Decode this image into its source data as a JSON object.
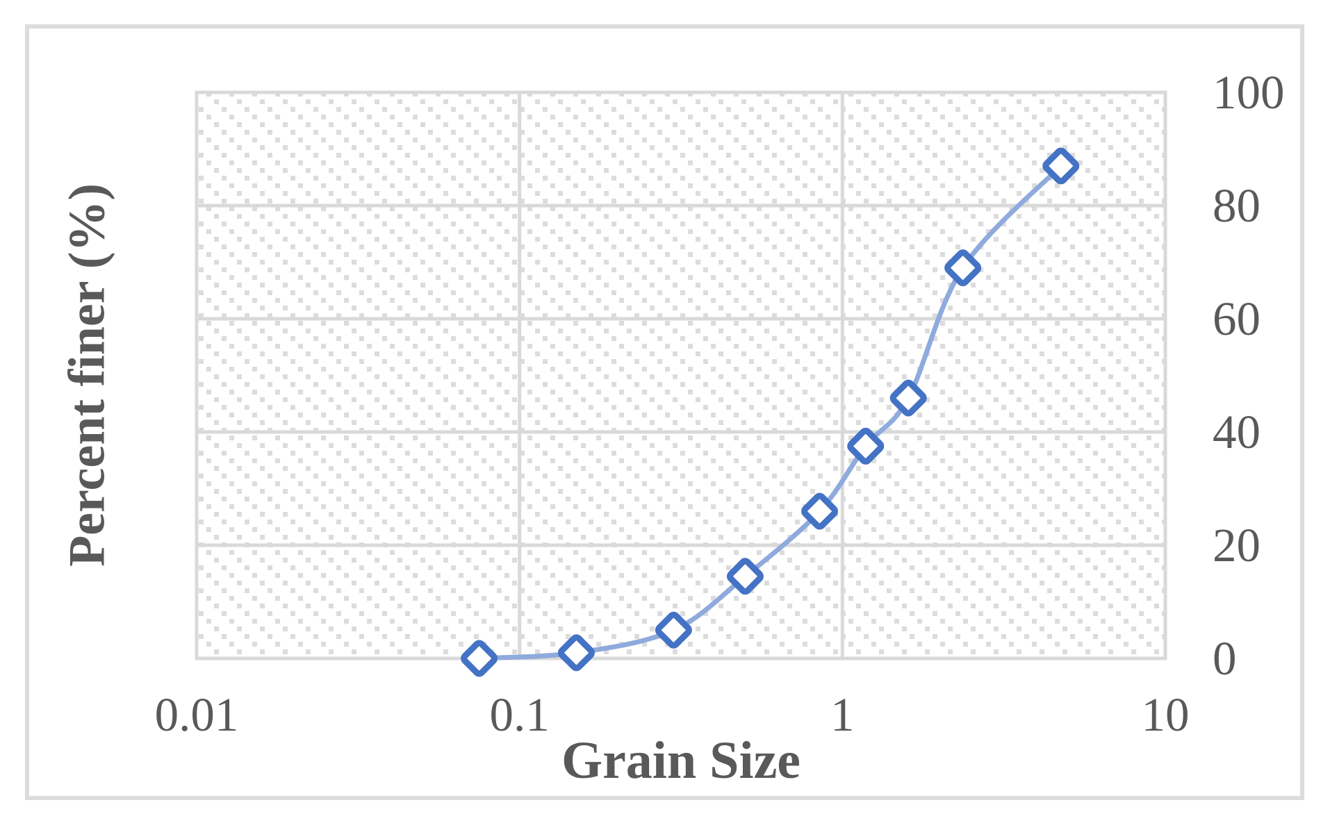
{
  "chart_data": {
    "type": "line",
    "title": "",
    "xlabel": "Grain Size",
    "ylabel": "Percent finer (%)",
    "x_scale": "log",
    "xlim": [
      0.01,
      10
    ],
    "x_ticks": [
      "0.01",
      "0.1",
      "1",
      "10"
    ],
    "ylim": [
      0,
      100
    ],
    "y_ticks": [
      0,
      20,
      40,
      60,
      80,
      100
    ],
    "y_axis_side": "right",
    "grid": true,
    "legend": false,
    "plot_area_fill": "light-downward-diagonal-dotted-hatch",
    "series": [
      {
        "name": "Percent finer",
        "marker": "diamond",
        "line_style": "smooth",
        "x": [
          0.075,
          0.15,
          0.3,
          0.5,
          0.85,
          1.18,
          1.6,
          2.36,
          4.75
        ],
        "y": [
          0,
          1,
          5,
          14.5,
          26,
          37.5,
          46,
          69,
          87
        ]
      }
    ]
  },
  "colors": {
    "marker": "#4472C4",
    "marker_fill": "#FFFFFF",
    "line": "#8FAADC",
    "gridline": "#D9D9D9",
    "frame_border": "#DCDCDC",
    "hatch_dot": "#DCDCDC",
    "text": "#595959",
    "background": "#FFFFFF"
  }
}
